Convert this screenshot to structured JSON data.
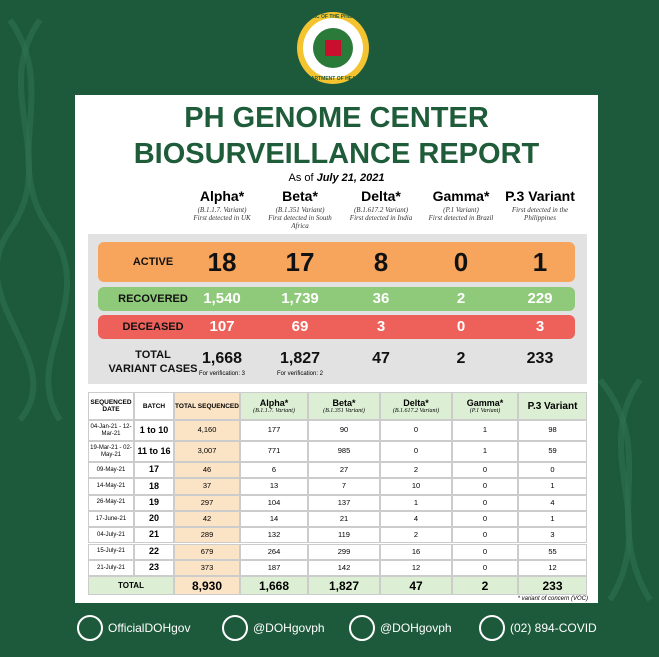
{
  "seal": {
    "top": "REPUBLIC OF THE PHILIPPINES",
    "bottom": "DEPARTMENT OF HEALTH"
  },
  "title": [
    "PH GENOME CENTER",
    "BIOSURVEILLANCE REPORT"
  ],
  "as_of": {
    "label": "As of",
    "date": "July 21, 2021"
  },
  "variants": [
    {
      "name": "Alpha*",
      "code": "(B.1.1.7. Variant)",
      "note": "First detected in UK"
    },
    {
      "name": "Beta*",
      "code": "(B.1.351 Variant)",
      "note": "First detected in South Africa"
    },
    {
      "name": "Delta*",
      "code": "(B.1.617.2 Variant)",
      "note": "First detected in India"
    },
    {
      "name": "Gamma*",
      "code": "(P.1 Variant)",
      "note": "First detected in Brazil"
    },
    {
      "name": "P.3 Variant",
      "note": "First detected in the Philippines"
    }
  ],
  "summary": [
    {
      "label": [
        "ACTIVE"
      ],
      "values": [
        "18",
        "17",
        "8",
        "0",
        "1"
      ]
    },
    {
      "label": [
        "RECOVERED"
      ],
      "values": [
        "1,540",
        "1,739",
        "36",
        "2",
        "229"
      ]
    },
    {
      "label": [
        "DECEASED"
      ],
      "values": [
        "107",
        "69",
        "3",
        "0",
        "3"
      ]
    },
    {
      "label": [
        "TOTAL",
        "VARIANT CASES"
      ],
      "values": [
        "1,668",
        "1,827",
        "47",
        "2",
        "233"
      ],
      "notes": [
        "For verification: 3",
        "For verification: 2"
      ]
    }
  ],
  "table": {
    "headers": [
      "SEQUENCED DATE",
      "BATCH",
      "TOTAL SEQUENCED"
    ],
    "rows": [
      [
        "04-Jan-21 - 12-Mar-21",
        "1 to 10",
        "4,160",
        "177",
        "90",
        "0",
        "1",
        "98"
      ],
      [
        "19-Mar-21 - 02-May-21",
        "11 to 16",
        "3,007",
        "771",
        "985",
        "0",
        "1",
        "59"
      ],
      [
        "09-May-21",
        "17",
        "46",
        "6",
        "27",
        "2",
        "0",
        "0"
      ],
      [
        "14-May-21",
        "18",
        "37",
        "13",
        "7",
        "10",
        "0",
        "1"
      ],
      [
        "26-May-21",
        "19",
        "297",
        "104",
        "137",
        "1",
        "0",
        "4"
      ],
      [
        "17-June-21",
        "20",
        "42",
        "14",
        "21",
        "4",
        "0",
        "1"
      ],
      [
        "04-July-21",
        "21",
        "289",
        "132",
        "119",
        "2",
        "0",
        "3"
      ],
      [
        "15-July-21",
        "22",
        "679",
        "264",
        "299",
        "16",
        "0",
        "55"
      ],
      [
        "21-July-21",
        "23",
        "373",
        "187",
        "142",
        "12",
        "0",
        "12"
      ]
    ],
    "total": [
      "TOTAL",
      "8,930",
      "1,668",
      "1,827",
      "47",
      "2",
      "233"
    ]
  },
  "footnote": "* variant of concern (VOC)",
  "footer": [
    "OfficialDOHgov",
    "@DOHgovph",
    "@DOHgovph",
    "(02) 894-COVID"
  ]
}
